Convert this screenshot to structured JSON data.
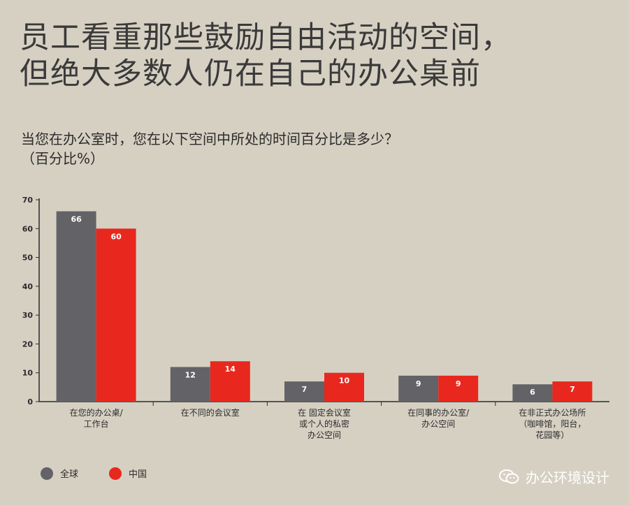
{
  "title_lines": [
    "员工看重那些鼓励自由活动的空间，",
    "但绝大多数人仍在自己的办公桌前"
  ],
  "subtitle_lines": [
    "当您在办公室时，您在以下空间中所处的时间百分比是多少？",
    "（百分比%）"
  ],
  "colors": {
    "global": "#636267",
    "china": "#e8281e",
    "background": "#d6d0c3"
  },
  "legend": [
    {
      "label": "全球",
      "color": "#636267"
    },
    {
      "label": "中国",
      "color": "#e8281e"
    }
  ],
  "watermark": {
    "text": "办公环境设计",
    "icon": "wechat-icon"
  },
  "chart_data": {
    "type": "bar",
    "categories": [
      [
        "在您的办公桌/",
        "工作台"
      ],
      [
        "在不同的会议室"
      ],
      [
        "在  固定会议室",
        "或个人的私密",
        "办公空间"
      ],
      [
        "在同事的办公室/",
        "办公空间"
      ],
      [
        "在非正式办公场所",
        "（咖啡馆，阳台，",
        "花园等）"
      ]
    ],
    "series": [
      {
        "name": "全球",
        "values": [
          66,
          12,
          7,
          9,
          6
        ]
      },
      {
        "name": "中国",
        "values": [
          60,
          14,
          10,
          9,
          7
        ]
      }
    ],
    "ylim": [
      0,
      70
    ],
    "yticks": [
      0,
      10,
      20,
      30,
      40,
      50,
      60,
      70
    ],
    "legend_position": "bottom-left",
    "grid": false
  }
}
